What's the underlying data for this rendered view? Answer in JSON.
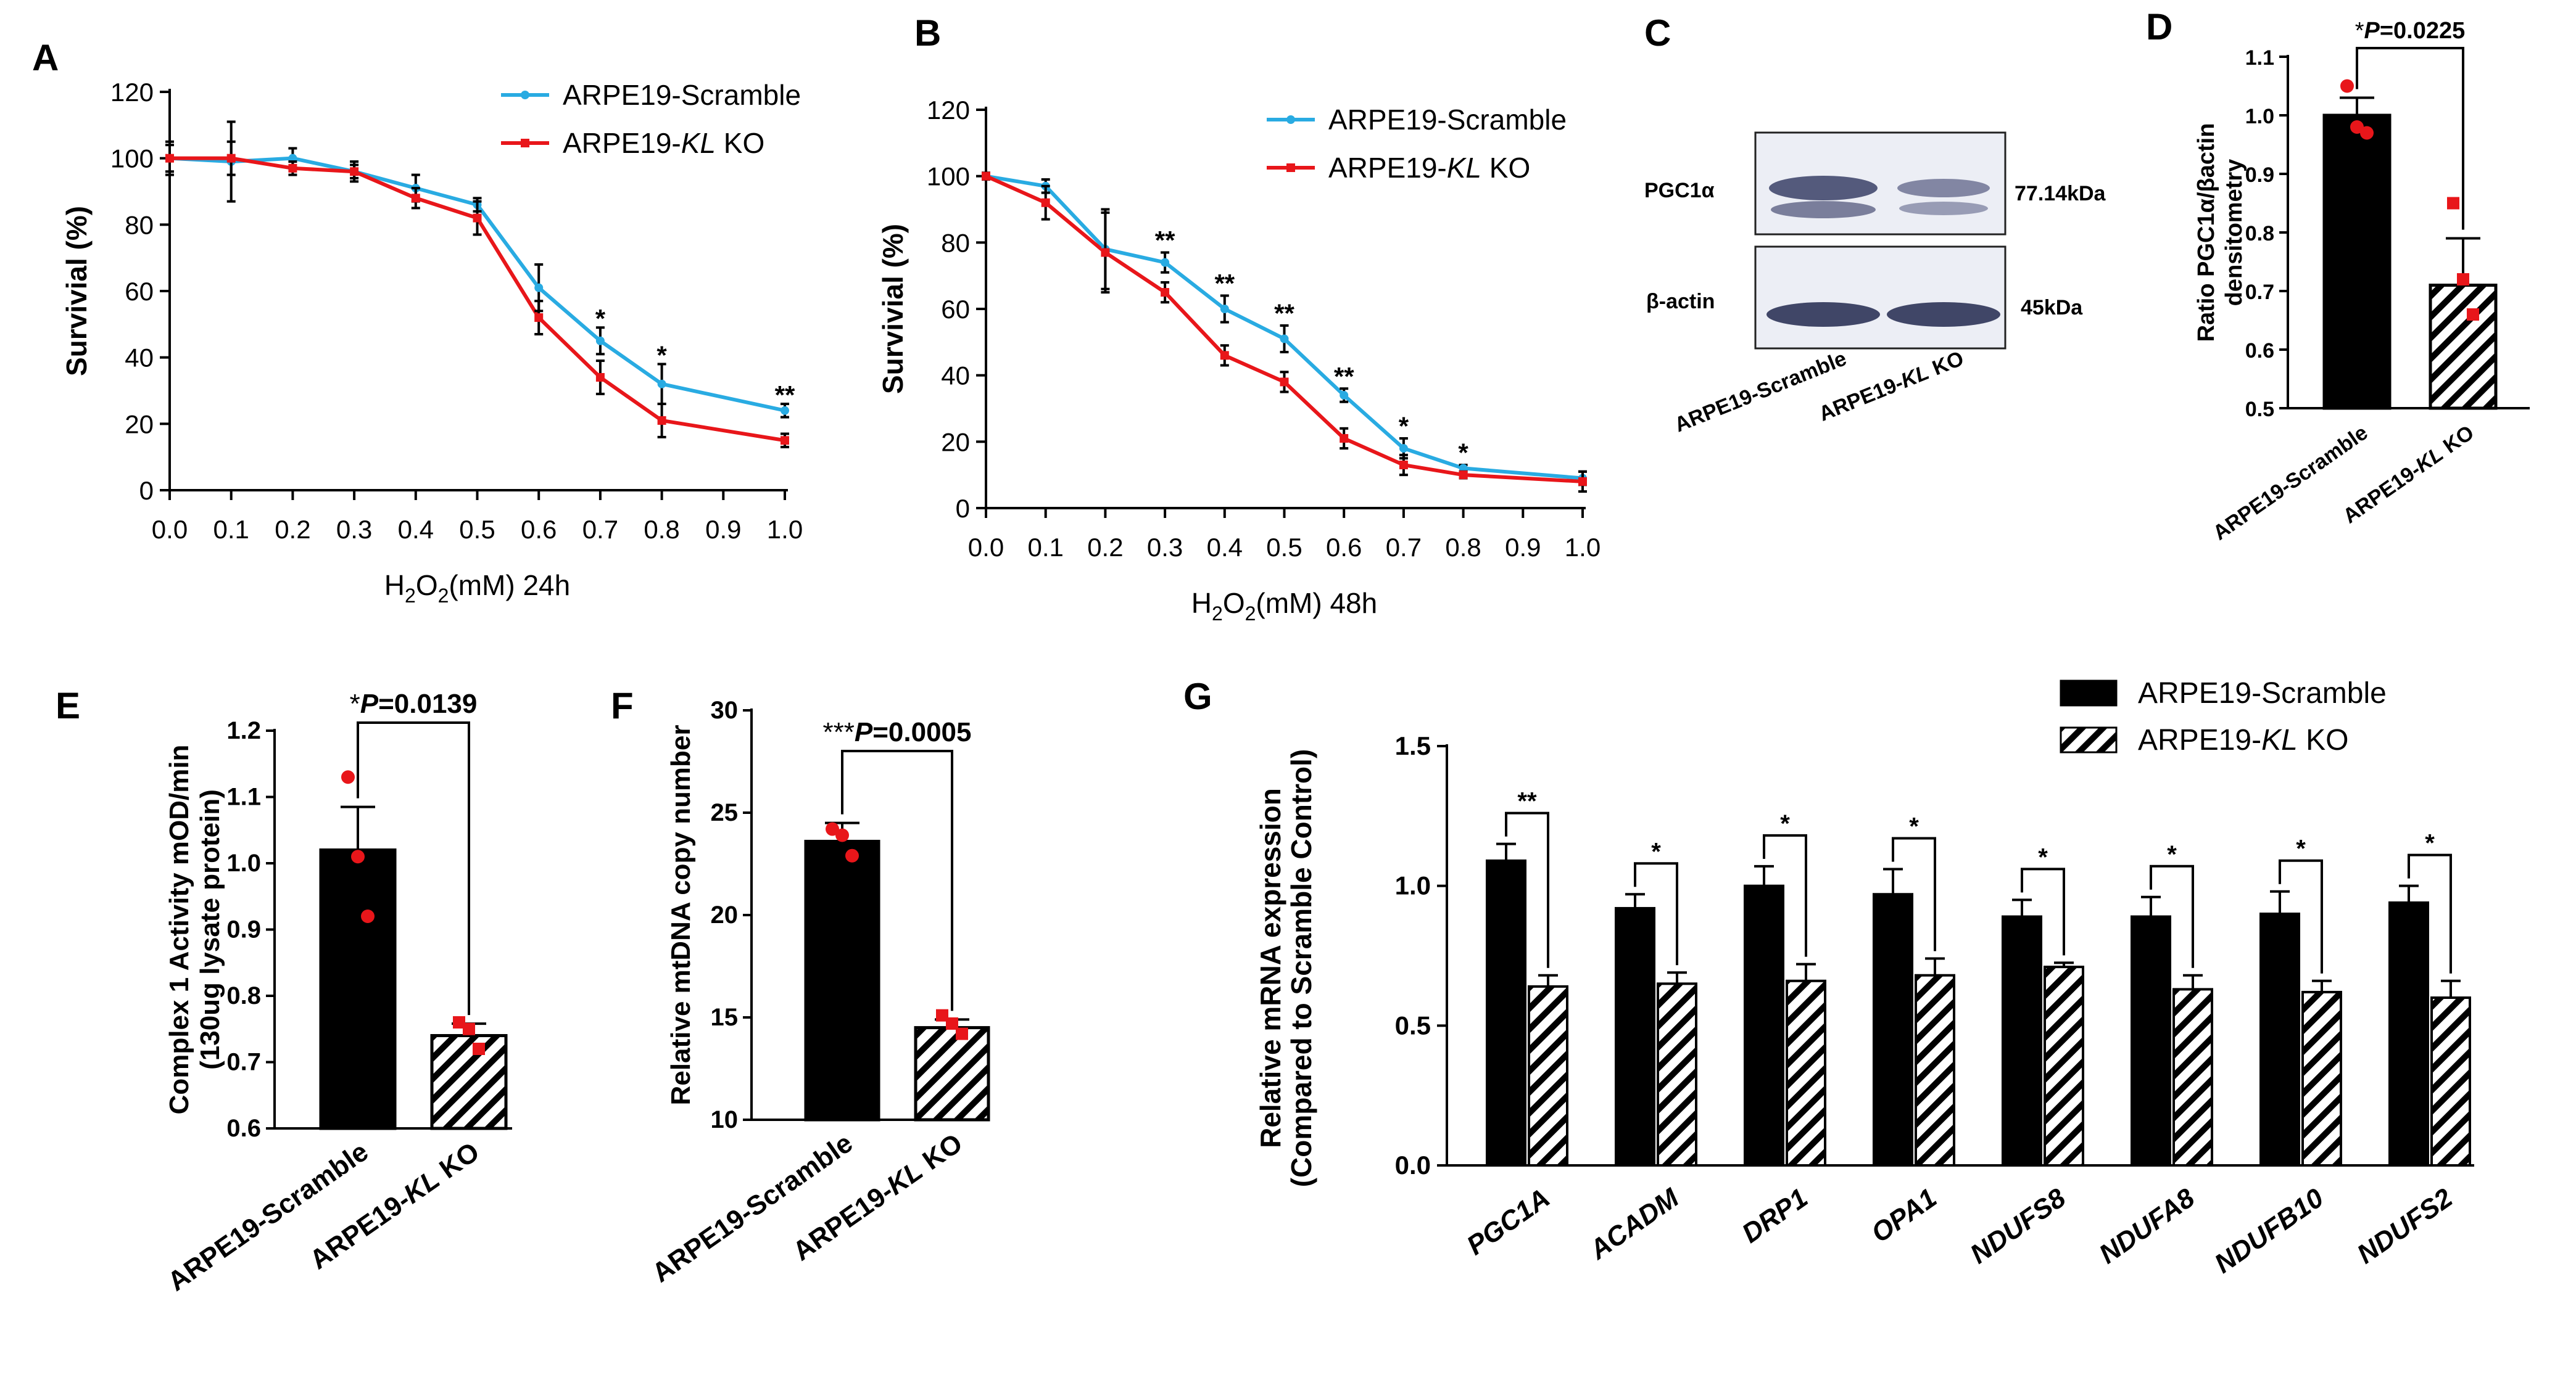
{
  "colors": {
    "scramble_line": "#29abe2",
    "ko_line": "#e8161a",
    "bar_fill": "#000000",
    "dot": "#e8161a",
    "axis": "#000000"
  },
  "chart_data": [
    {
      "panel": "A",
      "type": "line",
      "xlabel_main": "H",
      "xlabel_sub1": "2",
      "xlabel_mid": "O",
      "xlabel_sub2": "2",
      "xlabel_tail": "(mM)  24h",
      "ylabel": "Survivial (%)",
      "ylim": [
        0,
        120
      ],
      "xlim": [
        0,
        1.0
      ],
      "yticks": [
        "0",
        "20",
        "40",
        "60",
        "80",
        "100",
        "120"
      ],
      "xticks": [
        "0.0",
        "0.1",
        "0.2",
        "0.3",
        "0.4",
        "0.5",
        "0.6",
        "0.7",
        "0.8",
        "0.9",
        "1.0"
      ],
      "series": [
        {
          "name_pre": "ARPE19-Scramble",
          "name_ital": "",
          "name_post": "",
          "x": [
            0.0,
            0.1,
            0.2,
            0.3,
            0.4,
            0.5,
            0.6,
            0.7,
            0.8,
            1.0
          ],
          "y": [
            100,
            99,
            100,
            96,
            91,
            86,
            61,
            45,
            32,
            24
          ],
          "err": [
            5,
            12,
            3,
            3,
            4,
            2,
            7,
            4,
            6,
            2
          ]
        },
        {
          "name_pre": "ARPE19-",
          "name_ital": "KL",
          "name_post": " KO",
          "x": [
            0.0,
            0.1,
            0.2,
            0.3,
            0.4,
            0.5,
            0.6,
            0.7,
            0.8,
            1.0
          ],
          "y": [
            100,
            100,
            97,
            96,
            88,
            82,
            52,
            34,
            21,
            15
          ],
          "err": [
            4,
            5,
            2,
            2,
            3,
            5,
            5,
            5,
            5,
            2
          ]
        }
      ],
      "annotations": [
        {
          "x": 0.7,
          "text": "*",
          "y": 49
        },
        {
          "x": 0.8,
          "text": "*",
          "y": 38
        },
        {
          "x": 1.0,
          "text": "**",
          "y": 26
        }
      ]
    },
    {
      "panel": "B",
      "type": "line",
      "xlabel_main": "H",
      "xlabel_sub1": "2",
      "xlabel_mid": "O",
      "xlabel_sub2": "2",
      "xlabel_tail": "(mM)  48h",
      "ylabel": "Survivial (%)",
      "ylim": [
        0,
        120
      ],
      "xlim": [
        0,
        1.0
      ],
      "yticks": [
        "0",
        "20",
        "40",
        "60",
        "80",
        "100",
        "120"
      ],
      "xticks": [
        "0.0",
        "0.1",
        "0.2",
        "0.3",
        "0.4",
        "0.5",
        "0.6",
        "0.7",
        "0.8",
        "0.9",
        "1.0"
      ],
      "series": [
        {
          "name_pre": "ARPE19-Scramble",
          "name_ital": "",
          "name_post": "",
          "x": [
            0.0,
            0.1,
            0.2,
            0.3,
            0.4,
            0.5,
            0.6,
            0.7,
            0.8,
            1.0
          ],
          "y": [
            100,
            97,
            78,
            74,
            60,
            51,
            34,
            18,
            12,
            9
          ],
          "err": [
            1,
            2,
            12,
            3,
            4,
            4,
            2,
            3,
            1,
            2
          ]
        },
        {
          "name_pre": "ARPE19-",
          "name_ital": "KL",
          "name_post": " KO",
          "x": [
            0.0,
            0.1,
            0.2,
            0.3,
            0.4,
            0.5,
            0.6,
            0.7,
            0.8,
            1.0
          ],
          "y": [
            100,
            92,
            77,
            65,
            46,
            38,
            21,
            13,
            10,
            8
          ],
          "err": [
            1,
            5,
            12,
            3,
            3,
            3,
            3,
            3,
            1,
            3
          ]
        }
      ],
      "annotations": [
        {
          "x": 0.3,
          "text": "**",
          "y": 78
        },
        {
          "x": 0.4,
          "text": "**",
          "y": 65
        },
        {
          "x": 0.5,
          "text": "**",
          "y": 56
        },
        {
          "x": 0.6,
          "text": "**",
          "y": 37
        },
        {
          "x": 0.7,
          "text": "*",
          "y": 22
        },
        {
          "x": 0.8,
          "text": "*",
          "y": 14
        }
      ]
    },
    {
      "panel": "D",
      "type": "bar",
      "ylabel_line1": "Ratio PGC1α/βactin",
      "ylabel_line2": "densitometry",
      "ylim": [
        0.5,
        1.1
      ],
      "yticks": [
        "0.5",
        "0.6",
        "0.7",
        "0.8",
        "0.9",
        "1.0",
        "1.1"
      ],
      "categories": [
        {
          "pre": "ARPE19-Scramble",
          "ital": "",
          "post": ""
        },
        {
          "pre": "ARPE19-",
          "ital": "KL",
          "post": " KO"
        }
      ],
      "values": [
        1.0,
        0.71
      ],
      "err": [
        0.03,
        0.08
      ],
      "points": [
        [
          1.05,
          0.98,
          0.97
        ],
        [
          0.85,
          0.72,
          0.66
        ]
      ],
      "p_star": "*",
      "p_label": "P",
      "p_value": "=0.0225"
    },
    {
      "panel": "E",
      "type": "bar",
      "ylabel_line1": "Complex 1 Activity mOD/min",
      "ylabel_line2": "(130ug lysate protein)",
      "ylim": [
        0.6,
        1.2
      ],
      "yticks": [
        "0.6",
        "0.7",
        "0.8",
        "0.9",
        "1.0",
        "1.1",
        "1.2"
      ],
      "categories": [
        {
          "pre": "ARPE19-Scramble",
          "ital": "",
          "post": ""
        },
        {
          "pre": "ARPE19-",
          "ital": "KL",
          "post": " KO"
        }
      ],
      "values": [
        1.02,
        0.74
      ],
      "err": [
        0.065,
        0.018
      ],
      "points": [
        [
          1.13,
          1.01,
          0.92
        ],
        [
          0.76,
          0.75,
          0.72
        ]
      ],
      "p_star": "*",
      "p_label": "P",
      "p_value": "=0.0139"
    },
    {
      "panel": "F",
      "type": "bar",
      "ylabel_line1": "Relative mtDNA copy number",
      "ylabel_line2": "",
      "ylim": [
        10,
        30
      ],
      "yticks": [
        "10",
        "15",
        "20",
        "25",
        "30"
      ],
      "categories": [
        {
          "pre": "ARPE19-Scramble",
          "ital": "",
          "post": ""
        },
        {
          "pre": "ARPE19-",
          "ital": "KL",
          "post": " KO"
        }
      ],
      "values": [
        23.6,
        14.5
      ],
      "err": [
        0.9,
        0.4
      ],
      "points": [
        [
          24.2,
          23.9,
          22.9
        ],
        [
          15.1,
          14.7,
          14.2
        ]
      ],
      "p_star": "***",
      "p_label": "P",
      "p_value": "=0.0005"
    },
    {
      "panel": "G",
      "type": "bar",
      "ylabel_line1": "Relative mRNA expression",
      "ylabel_line2": "(Compared to Scramble Control)",
      "ylim": [
        0,
        1.5
      ],
      "yticks": [
        "0.0",
        "0.5",
        "1.0",
        "1.5"
      ],
      "categories": [
        "PGC1A",
        "ACADM",
        "DRP1",
        "OPA1",
        "NDUFS8",
        "NDUFA8",
        "NDUFB10",
        "NDUFS2"
      ],
      "legend": [
        {
          "pre": "ARPE19-Scramble",
          "ital": "",
          "post": ""
        },
        {
          "pre": "ARPE19-",
          "ital": "KL",
          "post": " KO"
        }
      ],
      "series": [
        {
          "name": "ARPE19-Scramble",
          "values": [
            1.09,
            0.92,
            1.0,
            0.97,
            0.89,
            0.89,
            0.9,
            0.94
          ],
          "err": [
            0.06,
            0.05,
            0.07,
            0.09,
            0.06,
            0.07,
            0.08,
            0.06
          ]
        },
        {
          "name": "ARPE19-KL KO",
          "values": [
            0.64,
            0.65,
            0.66,
            0.68,
            0.71,
            0.63,
            0.62,
            0.6
          ],
          "err": [
            0.04,
            0.04,
            0.06,
            0.06,
            0.015,
            0.05,
            0.04,
            0.06
          ]
        }
      ],
      "significance": [
        "**",
        "*",
        "*",
        "*",
        "*",
        "*",
        "*",
        "*"
      ]
    }
  ],
  "panel_letters": [
    "A",
    "B",
    "C",
    "D",
    "E",
    "F",
    "G"
  ],
  "blot": {
    "row1_label": "PGC1α",
    "row1_size": "77.14kDa",
    "row2_label": "β-actin",
    "row2_size": "45kDa",
    "lanes": [
      {
        "pre": "ARPE19-Scramble",
        "ital": "",
        "post": ""
      },
      {
        "pre": "ARPE19-",
        "ital": "KL",
        "post": " KO"
      }
    ]
  }
}
